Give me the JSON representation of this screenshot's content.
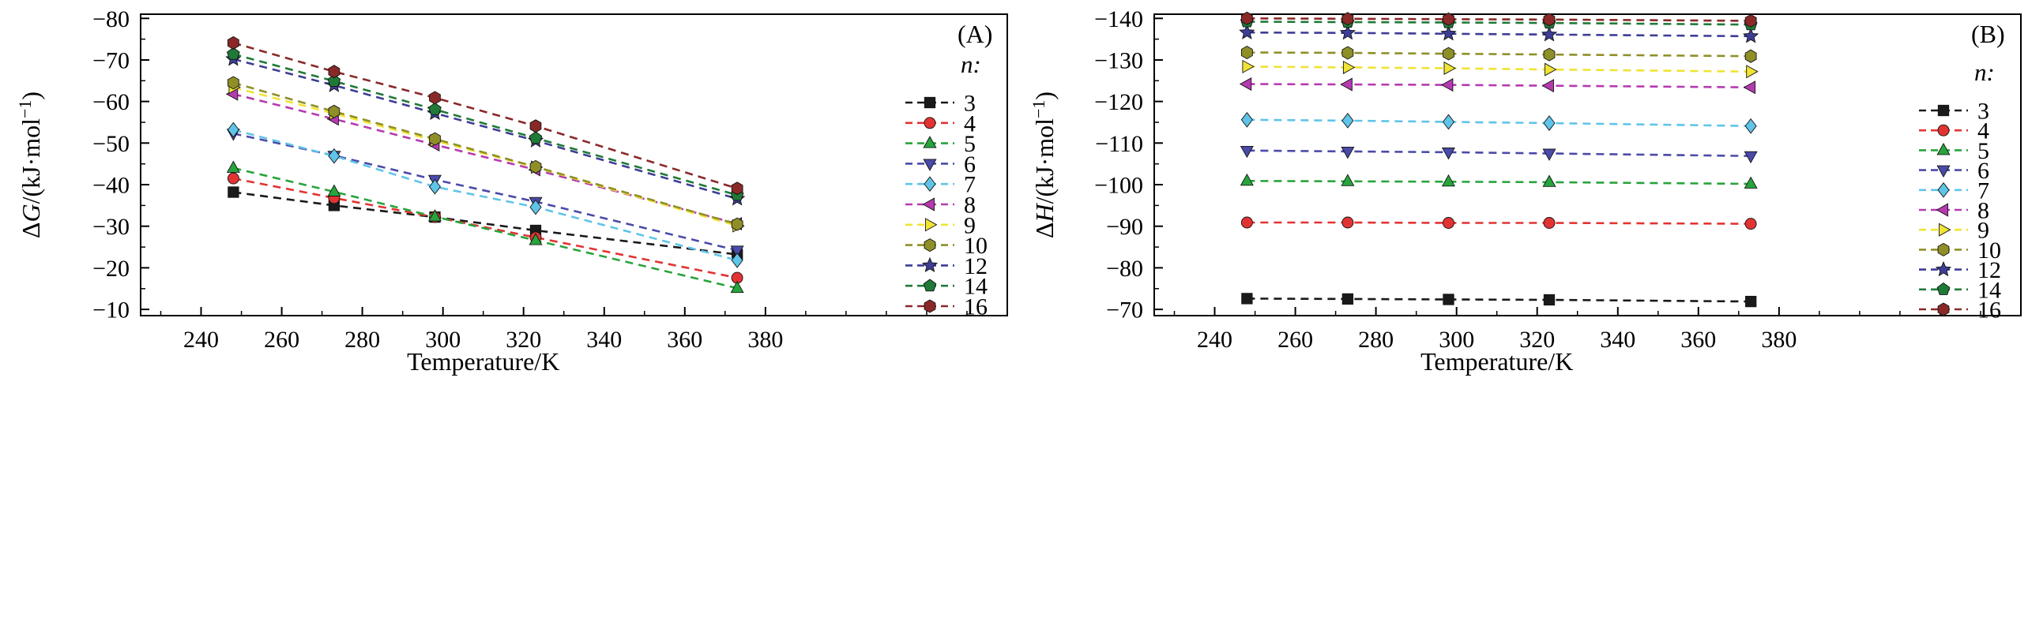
{
  "figure": {
    "background": "#ffffff"
  },
  "chart_data": [
    {
      "type": "line",
      "panel_label": "(A)",
      "xlabel": "Temperature/K",
      "ylabel": "ΔG/(kJ·mol⁻¹)",
      "ylabel_parts": {
        "pre": "Δ",
        "var": "G",
        "unit": "/(kJ·mol",
        "sup": "−1",
        "close": ")"
      },
      "legend_title": "n:",
      "legend_position": "right-inside",
      "grid": false,
      "y_axis_reversed": true,
      "x": [
        248,
        273,
        298,
        323,
        373
      ],
      "xticks": [
        240,
        260,
        280,
        300,
        320,
        340,
        360,
        380
      ],
      "yticks": [
        -80,
        -70,
        -60,
        -50,
        -40,
        -30,
        -20,
        -10
      ],
      "xlim": [
        225,
        440
      ],
      "ylim": [
        -81,
        -8.5
      ],
      "series": [
        {
          "name": "3",
          "marker": "square",
          "color": "#1a1a1a",
          "values": [
            -38.2,
            -35.0,
            -32.2,
            -29.0,
            -23.2
          ]
        },
        {
          "name": "4",
          "marker": "circle",
          "color": "#e23333",
          "values": [
            -41.5,
            -36.8,
            -32.2,
            -27.3,
            -17.6
          ]
        },
        {
          "name": "5",
          "marker": "triangle-up",
          "color": "#27a43c",
          "values": [
            -44.0,
            -38.3,
            -32.3,
            -26.6,
            -15.1
          ]
        },
        {
          "name": "6",
          "marker": "triangle-down",
          "color": "#4a4aa8",
          "values": [
            -52.3,
            -47.0,
            -41.2,
            -35.9,
            -24.2
          ]
        },
        {
          "name": "7",
          "marker": "diamond",
          "color": "#5fc4e8",
          "values": [
            -53.2,
            -46.9,
            -39.5,
            -34.6,
            -21.8
          ]
        },
        {
          "name": "8",
          "marker": "triangle-left",
          "color": "#b53ab0",
          "values": [
            -61.8,
            -55.8,
            -49.6,
            -43.6,
            -30.6
          ]
        },
        {
          "name": "9",
          "marker": "triangle-right",
          "color": "#f0e334",
          "values": [
            -63.4,
            -57.1,
            -50.6,
            -44.2,
            -30.1
          ]
        },
        {
          "name": "10",
          "marker": "hexagon",
          "color": "#8f8f28",
          "values": [
            -64.5,
            -57.6,
            -51.0,
            -44.3,
            -30.5
          ]
        },
        {
          "name": "12",
          "marker": "star",
          "color": "#3d3d96",
          "values": [
            -70.2,
            -63.9,
            -57.2,
            -50.6,
            -36.6
          ]
        },
        {
          "name": "14",
          "marker": "pentagon",
          "color": "#1f7a38",
          "values": [
            -71.4,
            -64.9,
            -58.1,
            -51.2,
            -37.5
          ]
        },
        {
          "name": "16",
          "marker": "hexagon",
          "color": "#8a2828",
          "values": [
            -74.1,
            -67.2,
            -60.9,
            -54.1,
            -39.1
          ]
        }
      ]
    },
    {
      "type": "line",
      "panel_label": "(B)",
      "xlabel": "Temperature/K",
      "ylabel": "ΔH/(kJ·mol⁻¹)",
      "ylabel_parts": {
        "pre": "Δ",
        "var": "H",
        "unit": "/(kJ·mol",
        "sup": "−1",
        "close": ")"
      },
      "legend_title": "n:",
      "legend_position": "right-inside",
      "grid": false,
      "y_axis_reversed": true,
      "x": [
        248,
        273,
        298,
        323,
        373
      ],
      "xticks": [
        240,
        260,
        280,
        300,
        320,
        340,
        360,
        380
      ],
      "yticks": [
        -140,
        -130,
        -120,
        -110,
        -100,
        -90,
        -80,
        -70
      ],
      "xlim": [
        225,
        440
      ],
      "ylim": [
        -141,
        -68.5
      ],
      "series": [
        {
          "name": "3",
          "marker": "square",
          "color": "#1a1a1a",
          "values": [
            -72.6,
            -72.5,
            -72.4,
            -72.3,
            -71.9
          ]
        },
        {
          "name": "4",
          "marker": "circle",
          "color": "#e23333",
          "values": [
            -90.9,
            -90.9,
            -90.8,
            -90.8,
            -90.6
          ]
        },
        {
          "name": "5",
          "marker": "triangle-up",
          "color": "#27a43c",
          "values": [
            -100.9,
            -100.8,
            -100.7,
            -100.6,
            -100.2
          ]
        },
        {
          "name": "6",
          "marker": "triangle-down",
          "color": "#4a4aa8",
          "values": [
            -108.2,
            -108.0,
            -107.8,
            -107.5,
            -106.9
          ]
        },
        {
          "name": "7",
          "marker": "diamond",
          "color": "#5fc4e8",
          "values": [
            -115.6,
            -115.4,
            -115.1,
            -114.8,
            -114.1
          ]
        },
        {
          "name": "8",
          "marker": "triangle-left",
          "color": "#b53ab0",
          "values": [
            -124.2,
            -124.1,
            -124.0,
            -123.8,
            -123.4
          ]
        },
        {
          "name": "9",
          "marker": "triangle-right",
          "color": "#f0e334",
          "values": [
            -128.4,
            -128.2,
            -128.0,
            -127.7,
            -127.2
          ]
        },
        {
          "name": "10",
          "marker": "hexagon",
          "color": "#8f8f28",
          "values": [
            -131.8,
            -131.7,
            -131.5,
            -131.3,
            -130.9
          ]
        },
        {
          "name": "12",
          "marker": "star",
          "color": "#3d3d96",
          "values": [
            -136.6,
            -136.5,
            -136.3,
            -136.1,
            -135.7
          ]
        },
        {
          "name": "14",
          "marker": "pentagon",
          "color": "#1f7a38",
          "values": [
            -139.2,
            -139.1,
            -139.0,
            -138.9,
            -138.5
          ]
        },
        {
          "name": "16",
          "marker": "hexagon",
          "color": "#8a2828",
          "values": [
            -140.0,
            -139.9,
            -139.8,
            -139.7,
            -139.4
          ]
        }
      ]
    }
  ]
}
